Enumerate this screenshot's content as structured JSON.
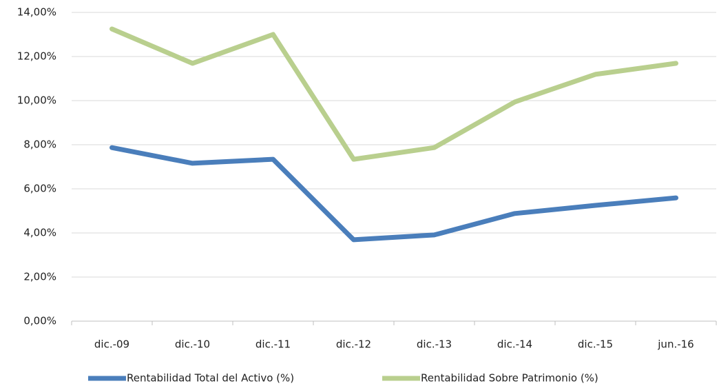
{
  "chart_data": {
    "type": "line",
    "categories": [
      "dic.-09",
      "dic.-10",
      "dic.-11",
      "dic.-12",
      "dic.-13",
      "dic.-14",
      "dic.-15",
      "jun.-16"
    ],
    "series": [
      {
        "name": "Rentabilidad Total del Activo (%)",
        "color": "#4a7ebb",
        "values": [
          7.87,
          7.16,
          7.34,
          3.69,
          3.91,
          4.88,
          5.25,
          5.59
        ]
      },
      {
        "name": "Rentabilidad Sobre Patrimonio (%)",
        "color": "#b9cf8e",
        "values": [
          13.25,
          11.69,
          13.0,
          7.34,
          7.87,
          9.94,
          11.19,
          11.69
        ]
      }
    ],
    "ylim": [
      0,
      14
    ],
    "yticks": [
      {
        "value": 0,
        "label": "0,00%"
      },
      {
        "value": 2,
        "label": "2,00%"
      },
      {
        "value": 4,
        "label": "4,00%"
      },
      {
        "value": 6,
        "label": "6,00%"
      },
      {
        "value": 8,
        "label": "8,00%"
      },
      {
        "value": 10,
        "label": "10,00%"
      },
      {
        "value": 12,
        "label": "12,00%"
      },
      {
        "value": 14,
        "label": "14,00%"
      }
    ],
    "grid": true,
    "legend": "bottom"
  }
}
